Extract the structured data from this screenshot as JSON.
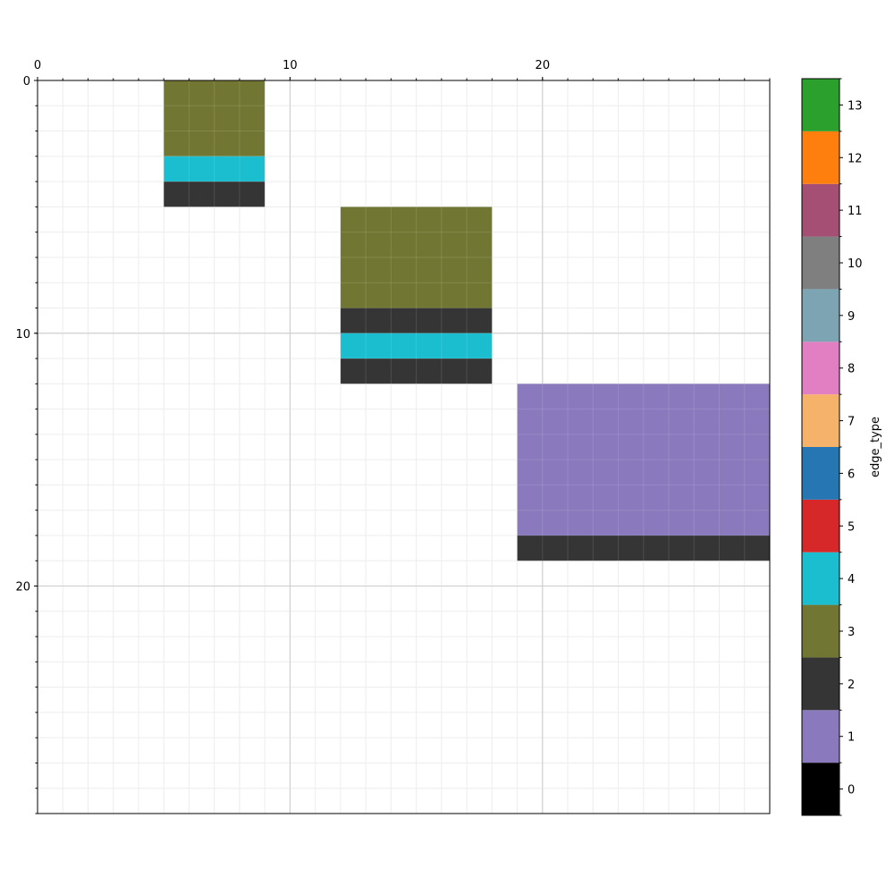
{
  "chart_data": {
    "type": "heatmap",
    "title": "",
    "xlabel": "",
    "ylabel": "",
    "x_axis_position": "top",
    "xlim": [
      0,
      29
    ],
    "ylim": [
      29,
      0
    ],
    "x_major_ticks": [
      0,
      10,
      20
    ],
    "y_major_ticks": [
      0,
      10,
      20
    ],
    "x_minor_tick_step": 1,
    "y_minor_tick_step": 1,
    "grid": true,
    "cells": [
      {
        "x0": 5,
        "x1": 9,
        "y0": 0,
        "y1": 3,
        "value": 3
      },
      {
        "x0": 5,
        "x1": 9,
        "y0": 3,
        "y1": 4,
        "value": 4
      },
      {
        "x0": 5,
        "x1": 9,
        "y0": 4,
        "y1": 5,
        "value": 2
      },
      {
        "x0": 12,
        "x1": 18,
        "y0": 5,
        "y1": 9,
        "value": 3
      },
      {
        "x0": 12,
        "x1": 18,
        "y0": 9,
        "y1": 10,
        "value": 2
      },
      {
        "x0": 12,
        "x1": 18,
        "y0": 10,
        "y1": 11,
        "value": 4
      },
      {
        "x0": 12,
        "x1": 18,
        "y0": 11,
        "y1": 12,
        "value": 2
      },
      {
        "x0": 19,
        "x1": 29,
        "y0": 12,
        "y1": 18,
        "value": 1
      },
      {
        "x0": 19,
        "x1": 29,
        "y0": 18,
        "y1": 19,
        "value": 2
      }
    ],
    "colorbar": {
      "label": "edge_type",
      "ticks": [
        0,
        1,
        2,
        3,
        4,
        5,
        6,
        7,
        8,
        9,
        10,
        11,
        12,
        13
      ],
      "colors": [
        "#000000",
        "#8a79bd",
        "#353535",
        "#727633",
        "#1abecf",
        "#d62828",
        "#2676b4",
        "#f5b26b",
        "#e27ec2",
        "#7da4b2",
        "#7f7f7f",
        "#a54f75",
        "#ff7f0e",
        "#2ca02c"
      ]
    }
  }
}
